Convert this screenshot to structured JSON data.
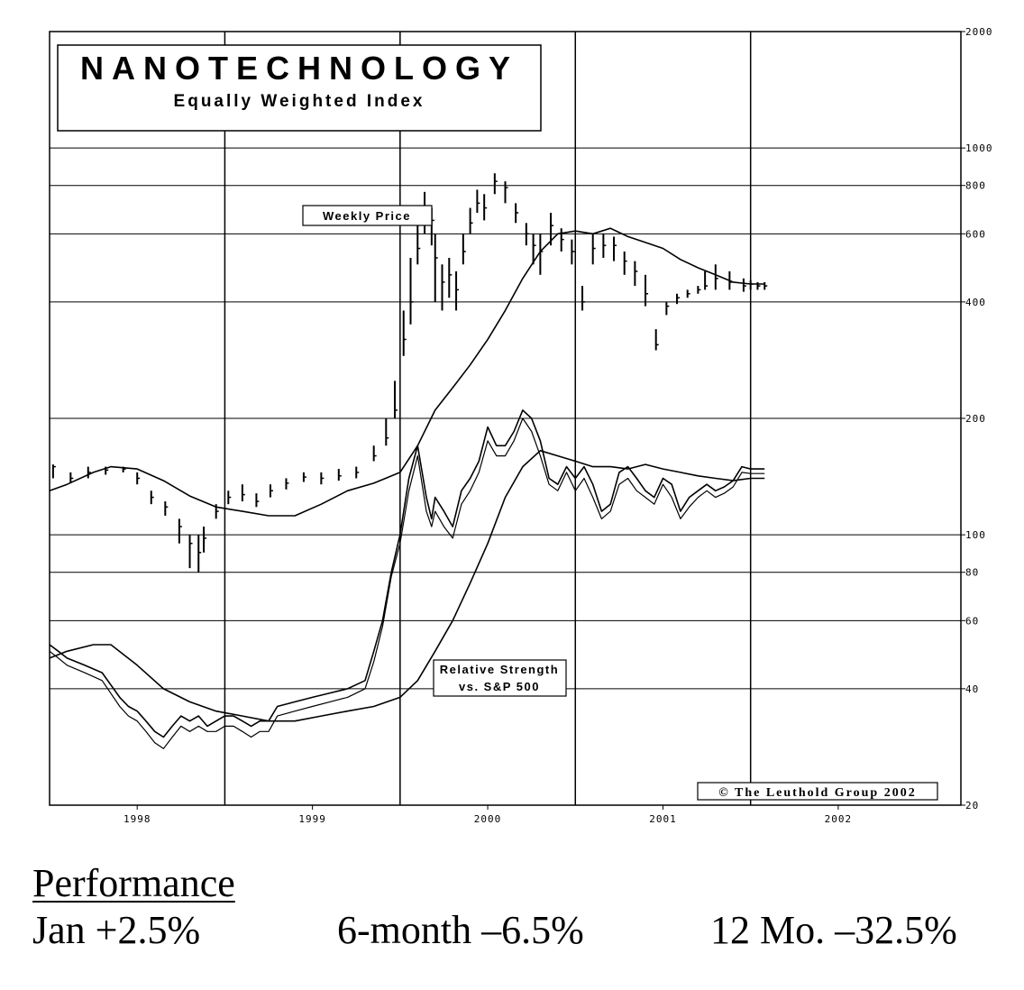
{
  "chart_data": {
    "type": "line",
    "scale": "log",
    "title": "NANOTECHNOLOGY",
    "subtitle": "Equally Weighted Index",
    "ylim": [
      20,
      2000
    ],
    "xlim": [
      1997.5,
      2002.7
    ],
    "y_ticks": [
      {
        "value": 2000,
        "label": "2000"
      },
      {
        "value": 1000,
        "label": "1000"
      },
      {
        "value": 800,
        "label": "800"
      },
      {
        "value": 600,
        "label": "600"
      },
      {
        "value": 400,
        "label": "400"
      },
      {
        "value": 200,
        "label": "200"
      },
      {
        "value": 100,
        "label": "100"
      },
      {
        "value": 80,
        "label": "80"
      },
      {
        "value": 60,
        "label": "60"
      },
      {
        "value": 40,
        "label": "40"
      },
      {
        "value": 20,
        "label": "20"
      }
    ],
    "gridlines": [
      1000,
      800,
      600,
      400,
      200,
      100,
      80,
      60,
      40
    ],
    "x_dividers": [
      1998.5,
      1999.5,
      2000.5,
      2001.5
    ],
    "x_ticks": [
      {
        "value": 1998,
        "label": "1998"
      },
      {
        "value": 1999,
        "label": "1999"
      },
      {
        "value": 2000,
        "label": "2000"
      },
      {
        "value": 2001,
        "label": "2001"
      },
      {
        "value": 2002,
        "label": "2002"
      }
    ],
    "annotations": {
      "weekly_price": "Weekly Price",
      "relative_strength_1": "Relative Strength",
      "relative_strength_2": "vs. S&P 500",
      "copyright": "© The Leuthold Group 2002"
    },
    "series": [
      {
        "name": "Weekly Price",
        "style": "bars",
        "x": [
          1997.52,
          1997.62,
          1997.72,
          1997.82,
          1997.92,
          1998.0,
          1998.08,
          1998.16,
          1998.24,
          1998.3,
          1998.35,
          1998.38,
          1998.45,
          1998.52,
          1998.6,
          1998.68,
          1998.76,
          1998.85,
          1998.95,
          1999.05,
          1999.15,
          1999.25,
          1999.35,
          1999.42,
          1999.47,
          1999.52,
          1999.56,
          1999.6,
          1999.64,
          1999.68,
          1999.7,
          1999.74,
          1999.78,
          1999.82,
          1999.86,
          1999.9,
          1999.94,
          1999.98,
          2000.04,
          2000.1,
          2000.16,
          2000.22,
          2000.26,
          2000.3,
          2000.36,
          2000.42,
          2000.48,
          2000.54,
          2000.6,
          2000.66,
          2000.72,
          2000.78,
          2000.84,
          2000.9,
          2000.96,
          2001.02,
          2001.08,
          2001.14,
          2001.2,
          2001.24,
          2001.3,
          2001.38,
          2001.46,
          2001.5,
          2001.54,
          2001.58
        ],
        "values": [
          150,
          140,
          145,
          147,
          148,
          140,
          125,
          118,
          105,
          95,
          90,
          98,
          115,
          125,
          127,
          122,
          130,
          136,
          141,
          140,
          142,
          145,
          160,
          178,
          210,
          320,
          400,
          550,
          700,
          650,
          520,
          450,
          470,
          430,
          540,
          640,
          720,
          700,
          820,
          790,
          680,
          600,
          560,
          540,
          630,
          580,
          540,
          400,
          550,
          560,
          560,
          510,
          480,
          420,
          310,
          390,
          410,
          420,
          430,
          440,
          460,
          450,
          440,
          445,
          440,
          440
        ],
        "highs": [
          152,
          145,
          150,
          150,
          150,
          145,
          130,
          122,
          110,
          100,
          100,
          105,
          120,
          130,
          135,
          128,
          135,
          140,
          145,
          145,
          148,
          150,
          170,
          200,
          250,
          380,
          520,
          700,
          770,
          700,
          600,
          500,
          520,
          480,
          600,
          700,
          780,
          760,
          860,
          820,
          720,
          640,
          600,
          600,
          680,
          620,
          580,
          440,
          600,
          600,
          590,
          540,
          510,
          470,
          340,
          400,
          420,
          430,
          440,
          480,
          500,
          480,
          460,
          455,
          450,
          450
        ],
        "lows": [
          140,
          136,
          140,
          143,
          145,
          135,
          120,
          112,
          95,
          82,
          80,
          90,
          110,
          120,
          122,
          118,
          125,
          131,
          137,
          135,
          138,
          140,
          155,
          170,
          200,
          290,
          350,
          500,
          600,
          560,
          400,
          380,
          410,
          380,
          500,
          600,
          680,
          650,
          760,
          720,
          640,
          560,
          500,
          470,
          560,
          540,
          500,
          380,
          500,
          520,
          510,
          470,
          440,
          390,
          300,
          370,
          395,
          410,
          420,
          430,
          430,
          430,
          425,
          430,
          430,
          430
        ]
      },
      {
        "name": "Price Moving Average",
        "style": "line",
        "x": [
          1997.5,
          1997.6,
          1997.75,
          1997.85,
          1998.0,
          1998.15,
          1998.3,
          1998.45,
          1998.6,
          1998.75,
          1998.9,
          1999.05,
          1999.2,
          1999.35,
          1999.5,
          1999.6,
          1999.7,
          1999.8,
          1999.9,
          2000.0,
          2000.1,
          2000.2,
          2000.3,
          2000.4,
          2000.5,
          2000.6,
          2000.7,
          2000.8,
          2000.9,
          2001.0,
          2001.1,
          2001.2,
          2001.3,
          2001.4,
          2001.5,
          2001.58
        ],
        "values": [
          130,
          135,
          145,
          150,
          148,
          138,
          126,
          118,
          115,
          112,
          112,
          120,
          130,
          136,
          145,
          170,
          210,
          240,
          275,
          320,
          380,
          460,
          540,
          600,
          610,
          600,
          620,
          590,
          570,
          550,
          515,
          490,
          470,
          450,
          445,
          445
        ]
      },
      {
        "name": "Relative Strength vs. S&P 500",
        "style": "line",
        "x": [
          1997.5,
          1997.55,
          1997.6,
          1997.7,
          1997.8,
          1997.9,
          1997.95,
          1998.0,
          1998.05,
          1998.1,
          1998.15,
          1998.2,
          1998.25,
          1998.3,
          1998.35,
          1998.4,
          1998.45,
          1998.5,
          1998.55,
          1998.6,
          1998.65,
          1998.7,
          1998.75,
          1998.8,
          1998.9,
          1999.0,
          1999.1,
          1999.2,
          1999.3,
          1999.35,
          1999.4,
          1999.45,
          1999.5,
          1999.55,
          1999.6,
          1999.65,
          1999.68,
          1999.7,
          1999.75,
          1999.8,
          1999.85,
          1999.9,
          1999.95,
          2000.0,
          2000.05,
          2000.1,
          2000.15,
          2000.2,
          2000.25,
          2000.3,
          2000.35,
          2000.4,
          2000.45,
          2000.5,
          2000.55,
          2000.6,
          2000.65,
          2000.7,
          2000.75,
          2000.8,
          2000.85,
          2000.9,
          2000.95,
          2001.0,
          2001.05,
          2001.1,
          2001.15,
          2001.2,
          2001.25,
          2001.3,
          2001.35,
          2001.4,
          2001.45,
          2001.5,
          2001.55,
          2001.58
        ],
        "values": [
          52,
          50,
          48,
          46,
          44,
          38,
          36,
          35,
          33,
          31,
          30,
          32,
          34,
          33,
          34,
          32,
          33,
          34,
          34,
          33,
          32,
          33,
          33,
          36,
          37,
          38,
          39,
          40,
          42,
          50,
          60,
          80,
          100,
          140,
          170,
          125,
          110,
          125,
          115,
          105,
          130,
          140,
          155,
          190,
          170,
          170,
          185,
          210,
          200,
          175,
          140,
          135,
          150,
          140,
          150,
          135,
          115,
          120,
          145,
          150,
          140,
          130,
          125,
          140,
          135,
          115,
          125,
          130,
          135,
          130,
          133,
          138,
          150,
          148,
          148,
          148
        ],
        "lows": [
          50,
          48,
          46,
          44,
          42,
          36,
          34,
          33,
          31,
          29,
          28,
          30,
          32,
          31,
          32,
          31,
          31,
          32,
          32,
          31,
          30,
          31,
          31,
          34,
          35,
          36,
          37,
          38,
          40,
          47,
          58,
          78,
          95,
          130,
          160,
          115,
          105,
          115,
          105,
          98,
          120,
          130,
          145,
          175,
          160,
          160,
          175,
          200,
          185,
          160,
          135,
          130,
          145,
          130,
          140,
          125,
          110,
          115,
          135,
          140,
          130,
          125,
          120,
          135,
          125,
          110,
          118,
          125,
          130,
          125,
          128,
          133,
          145,
          144,
          144,
          144
        ]
      },
      {
        "name": "Relative Strength Moving Average",
        "style": "line",
        "x": [
          1997.5,
          1997.6,
          1997.75,
          1997.85,
          1998.0,
          1998.15,
          1998.3,
          1998.45,
          1998.6,
          1998.75,
          1998.9,
          1999.05,
          1999.2,
          1999.35,
          1999.5,
          1999.6,
          1999.7,
          1999.8,
          1999.9,
          2000.0,
          2000.1,
          2000.2,
          2000.3,
          2000.4,
          2000.5,
          2000.6,
          2000.7,
          2000.8,
          2000.9,
          2001.0,
          2001.1,
          2001.2,
          2001.3,
          2001.4,
          2001.5,
          2001.58
        ],
        "values": [
          48,
          50,
          52,
          52,
          46,
          40,
          37,
          35,
          34,
          33,
          33,
          34,
          35,
          36,
          38,
          42,
          50,
          60,
          75,
          95,
          125,
          150,
          165,
          160,
          155,
          150,
          150,
          148,
          152,
          148,
          145,
          142,
          140,
          138,
          140,
          140
        ]
      }
    ]
  },
  "performance": {
    "title": "Performance",
    "jan": "Jan +2.5%",
    "six_month": "6-month –6.5%",
    "twelve_month": "12 Mo. –32.5%"
  }
}
